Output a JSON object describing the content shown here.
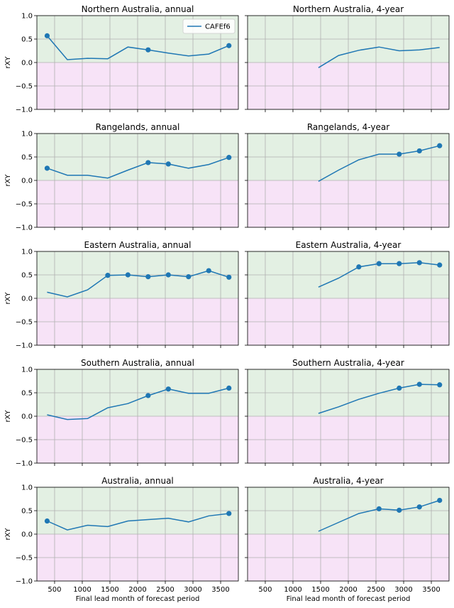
{
  "colors": {
    "line": "#1f77b4",
    "positive_band": "#e3f0e3",
    "negative_band": "#f7e3f7",
    "grid": "#b0b0b0",
    "axis": "#000000"
  },
  "legend": {
    "label": "CAFEf6"
  },
  "xlabel": "Final lead month of forecast period",
  "ylabel": "rXY",
  "xlim": [
    180,
    3820
  ],
  "ylim": [
    -1.0,
    1.0
  ],
  "xticks": [
    500,
    1000,
    1500,
    2000,
    2500,
    3000,
    3500
  ],
  "yticks": [
    -1.0,
    -0.5,
    0.0,
    0.5,
    1.0
  ],
  "ytick_labels": [
    "−1.0",
    "−0.5",
    "0.0",
    "0.5",
    "1.0"
  ],
  "chart_data": [
    {
      "type": "line",
      "title": "Northern Australia, annual",
      "xlabel": "",
      "ylabel": "rXY",
      "ylim": [
        -1.0,
        1.0
      ],
      "x": [
        365,
        730,
        1095,
        1460,
        1825,
        2190,
        2555,
        2920,
        3285,
        3650
      ],
      "values": [
        0.57,
        0.06,
        0.09,
        0.08,
        0.33,
        0.27,
        0.2,
        0.14,
        0.18,
        0.36
      ],
      "significant": [
        true,
        false,
        false,
        false,
        false,
        true,
        false,
        false,
        false,
        true
      ],
      "legend": "top-right"
    },
    {
      "type": "line",
      "title": "Northern Australia, 4-year",
      "xlabel": "",
      "ylabel": "",
      "ylim": [
        -1.0,
        1.0
      ],
      "x": [
        1460,
        1825,
        2190,
        2555,
        2920,
        3285,
        3650
      ],
      "values": [
        -0.11,
        0.15,
        0.26,
        0.33,
        0.25,
        0.27,
        0.32
      ],
      "significant": [
        false,
        false,
        false,
        false,
        false,
        false,
        false
      ]
    },
    {
      "type": "line",
      "title": "Rangelands, annual",
      "xlabel": "",
      "ylabel": "rXY",
      "ylim": [
        -1.0,
        1.0
      ],
      "x": [
        365,
        730,
        1095,
        1460,
        1825,
        2190,
        2555,
        2920,
        3285,
        3650
      ],
      "values": [
        0.26,
        0.11,
        0.11,
        0.05,
        0.22,
        0.38,
        0.35,
        0.26,
        0.34,
        0.49
      ],
      "significant": [
        true,
        false,
        false,
        false,
        false,
        true,
        true,
        false,
        false,
        true
      ]
    },
    {
      "type": "line",
      "title": "Rangelands, 4-year",
      "xlabel": "",
      "ylabel": "",
      "ylim": [
        -1.0,
        1.0
      ],
      "x": [
        1460,
        1825,
        2190,
        2555,
        2920,
        3285,
        3650
      ],
      "values": [
        -0.02,
        0.22,
        0.44,
        0.56,
        0.56,
        0.63,
        0.74
      ],
      "significant": [
        false,
        false,
        false,
        false,
        true,
        true,
        true
      ]
    },
    {
      "type": "line",
      "title": "Eastern Australia, annual",
      "xlabel": "",
      "ylabel": "rXY",
      "ylim": [
        -1.0,
        1.0
      ],
      "x": [
        365,
        730,
        1095,
        1460,
        1825,
        2190,
        2555,
        2920,
        3285,
        3650
      ],
      "values": [
        0.13,
        0.03,
        0.18,
        0.49,
        0.5,
        0.46,
        0.5,
        0.46,
        0.59,
        0.45
      ],
      "significant": [
        false,
        false,
        false,
        true,
        true,
        true,
        true,
        true,
        true,
        true
      ]
    },
    {
      "type": "line",
      "title": "Eastern Australia, 4-year",
      "xlabel": "",
      "ylabel": "",
      "ylim": [
        -1.0,
        1.0
      ],
      "x": [
        1460,
        1825,
        2190,
        2555,
        2920,
        3285,
        3650
      ],
      "values": [
        0.24,
        0.43,
        0.67,
        0.74,
        0.74,
        0.76,
        0.71
      ],
      "significant": [
        false,
        false,
        true,
        true,
        true,
        true,
        true
      ]
    },
    {
      "type": "line",
      "title": "Southern Australia, annual",
      "xlabel": "",
      "ylabel": "rXY",
      "ylim": [
        -1.0,
        1.0
      ],
      "x": [
        365,
        730,
        1095,
        1460,
        1825,
        2190,
        2555,
        2920,
        3285,
        3650
      ],
      "values": [
        0.03,
        -0.07,
        -0.05,
        0.18,
        0.27,
        0.44,
        0.58,
        0.49,
        0.49,
        0.6
      ],
      "significant": [
        false,
        false,
        false,
        false,
        false,
        true,
        true,
        false,
        false,
        true
      ]
    },
    {
      "type": "line",
      "title": "Southern Australia, 4-year",
      "xlabel": "",
      "ylabel": "",
      "ylim": [
        -1.0,
        1.0
      ],
      "x": [
        1460,
        1825,
        2190,
        2555,
        2920,
        3285,
        3650
      ],
      "values": [
        0.06,
        0.2,
        0.36,
        0.49,
        0.6,
        0.68,
        0.67
      ],
      "significant": [
        false,
        false,
        false,
        false,
        true,
        true,
        true
      ]
    },
    {
      "type": "line",
      "title": "Australia, annual",
      "xlabel": "Final lead month of forecast period",
      "ylabel": "rXY",
      "ylim": [
        -1.0,
        1.0
      ],
      "x": [
        365,
        730,
        1095,
        1460,
        1825,
        2190,
        2555,
        2920,
        3285,
        3650
      ],
      "values": [
        0.28,
        0.09,
        0.19,
        0.16,
        0.28,
        0.31,
        0.34,
        0.26,
        0.39,
        0.44
      ],
      "significant": [
        true,
        false,
        false,
        false,
        false,
        false,
        false,
        false,
        false,
        true
      ]
    },
    {
      "type": "line",
      "title": "Australia, 4-year",
      "xlabel": "Final lead month of forecast period",
      "ylabel": "",
      "ylim": [
        -1.0,
        1.0
      ],
      "x": [
        1460,
        1825,
        2190,
        2555,
        2920,
        3285,
        3650
      ],
      "values": [
        0.06,
        0.25,
        0.44,
        0.54,
        0.51,
        0.58,
        0.72
      ],
      "significant": [
        false,
        false,
        false,
        true,
        true,
        true,
        true
      ]
    }
  ]
}
